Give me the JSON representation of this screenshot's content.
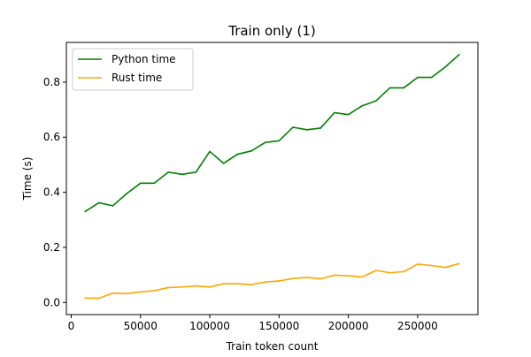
{
  "chart_data": {
    "type": "line",
    "title": "Train only (1)",
    "xlabel": "Train token count",
    "ylabel": "Time (s)",
    "xlim": [
      -3500,
      293500
    ],
    "ylim": [
      -0.044,
      0.944
    ],
    "x_ticks": [
      0,
      50000,
      100000,
      150000,
      200000,
      250000
    ],
    "x_tick_labels": [
      "0",
      "50000",
      "100000",
      "150000",
      "200000",
      "250000"
    ],
    "y_ticks": [
      0.0,
      0.2,
      0.4,
      0.6,
      0.8
    ],
    "y_tick_labels": [
      "0.0",
      "0.2",
      "0.4",
      "0.6",
      "0.8"
    ],
    "grid": false,
    "legend_position": "top-left",
    "x": [
      10000,
      20000,
      30000,
      40000,
      50000,
      60000,
      70000,
      80000,
      90000,
      100000,
      110000,
      120000,
      130000,
      140000,
      150000,
      160000,
      170000,
      180000,
      190000,
      200000,
      210000,
      220000,
      230000,
      240000,
      250000,
      260000,
      270000,
      280000
    ],
    "series": [
      {
        "name": "Python time",
        "color": "#008000",
        "values": [
          0.33,
          0.362,
          0.351,
          0.395,
          0.433,
          0.433,
          0.473,
          0.465,
          0.473,
          0.548,
          0.505,
          0.538,
          0.55,
          0.581,
          0.587,
          0.636,
          0.627,
          0.633,
          0.689,
          0.682,
          0.714,
          0.732,
          0.779,
          0.779,
          0.817,
          0.817,
          0.855,
          0.9
        ]
      },
      {
        "name": "Rust time",
        "color": "#FFA500",
        "values": [
          0.016,
          0.015,
          0.034,
          0.032,
          0.038,
          0.043,
          0.054,
          0.056,
          0.06,
          0.056,
          0.068,
          0.068,
          0.065,
          0.074,
          0.078,
          0.087,
          0.091,
          0.086,
          0.099,
          0.097,
          0.093,
          0.116,
          0.108,
          0.112,
          0.139,
          0.134,
          0.127,
          0.141
        ]
      }
    ]
  }
}
